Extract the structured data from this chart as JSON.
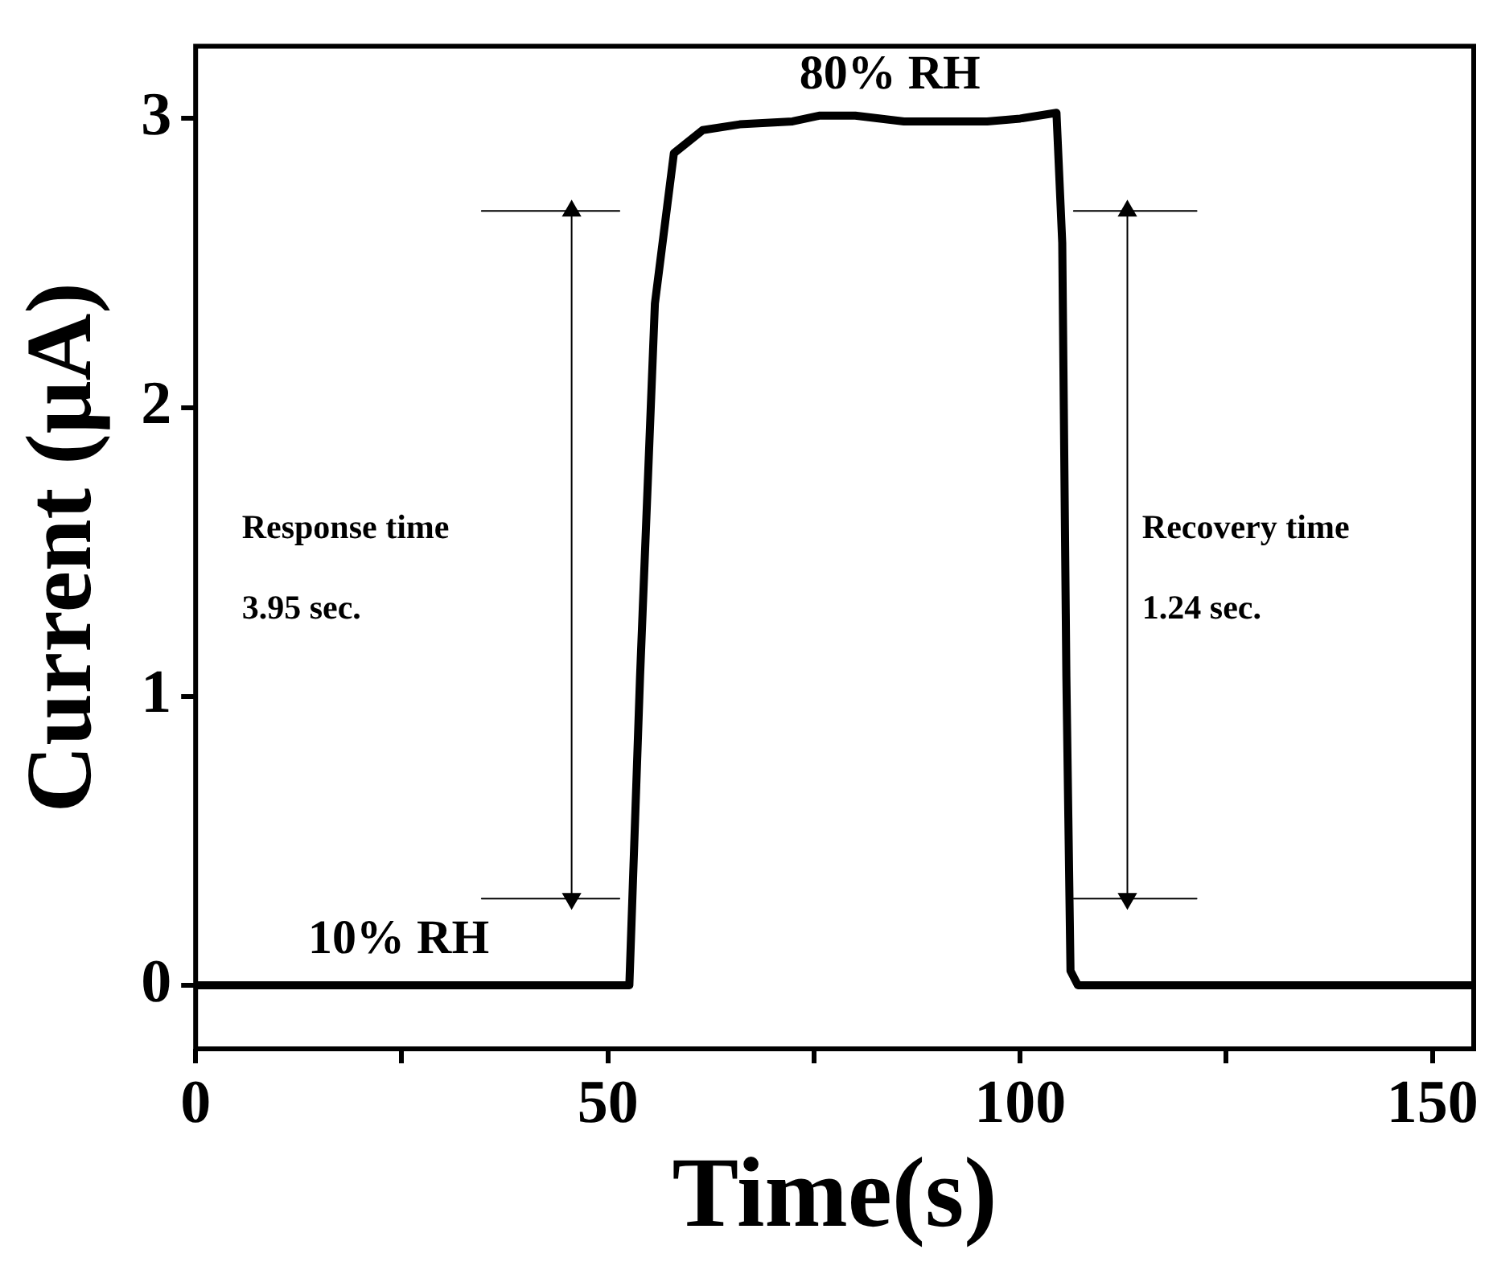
{
  "chart_data": {
    "type": "line",
    "xlabel": "Time(s)",
    "ylabel": "Current (μA)",
    "series": [
      {
        "color": "#000000",
        "x": [
          0,
          52.6,
          53.9,
          55.7,
          58,
          61.5,
          66,
          72.4,
          75.6,
          80,
          85.9,
          91,
          96,
          100,
          104.4,
          105.1,
          105.6,
          106.1,
          107,
          155
        ],
        "values": [
          0,
          0,
          1.07,
          2.36,
          2.88,
          2.96,
          2.98,
          2.99,
          3.01,
          3.01,
          2.99,
          2.99,
          2.99,
          3.0,
          3.02,
          2.57,
          1.07,
          0.05,
          0,
          0
        ]
      },
      {
        "type": "line",
        "color": "#000000",
        "x": [
          45.6,
          45.6
        ],
        "values": [
          0.3,
          2.68
        ],
        "marker": "triangle"
      },
      {
        "type": "line",
        "color": "#000000",
        "x": [
          34.7,
          51.4
        ],
        "values": [
          0.3,
          0.3
        ]
      },
      {
        "type": "line",
        "color": "#000000",
        "x": [
          34.7,
          51.4
        ],
        "values": [
          2.68,
          2.68
        ]
      },
      {
        "type": "line",
        "color": "#000000",
        "x": [
          113,
          113
        ],
        "values": [
          0.3,
          2.68
        ],
        "marker": "triangle"
      },
      {
        "type": "line",
        "color": "#000000",
        "x": [
          106.5,
          121.4
        ],
        "values": [
          0.3,
          0.3
        ]
      },
      {
        "type": "line",
        "color": "#000000",
        "x": [
          106.5,
          121.4
        ],
        "values": [
          2.68,
          2.68
        ]
      }
    ],
    "xlim": [
      0,
      155
    ],
    "xticks": [
      0,
      {
        "value": 25,
        "label": null
      },
      50,
      {
        "value": 75,
        "label": null
      },
      100,
      {
        "value": 125,
        "label": null
      },
      150
    ],
    "ylim": [
      -0.22,
      3.25
    ],
    "yticks": [
      0,
      1,
      2,
      3
    ],
    "annotations": [
      "10% RH",
      "80% RH",
      "Response time\n3.95 sec.",
      "Recovery time\n1.24 sec."
    ],
    "grid": false,
    "legend": false,
    "marker": "none",
    "line_style": "solid"
  }
}
